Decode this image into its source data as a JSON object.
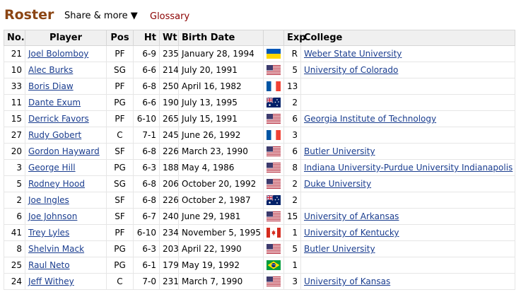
{
  "header": {
    "title": "Roster",
    "share_label": "Share & more ▼",
    "glossary_label": "Glossary"
  },
  "table": {
    "columns": [
      "No.",
      "Player",
      "Pos",
      "Ht",
      "Wt",
      "Birth Date",
      "",
      "Exp",
      "College"
    ],
    "rows": [
      {
        "no": "21",
        "player": "Joel Bolomboy",
        "pos": "PF",
        "ht": "6-9",
        "wt": "235",
        "birth": "January 28, 1994",
        "flag": "ua-flag-icon",
        "exp": "R",
        "college": "Weber State University"
      },
      {
        "no": "10",
        "player": "Alec Burks",
        "pos": "SG",
        "ht": "6-6",
        "wt": "214",
        "birth": "July 20, 1991",
        "flag": "us-flag-icon",
        "exp": "5",
        "college": "University of Colorado"
      },
      {
        "no": "33",
        "player": "Boris Diaw",
        "pos": "PF",
        "ht": "6-8",
        "wt": "250",
        "birth": "April 16, 1982",
        "flag": "fr-flag-icon",
        "exp": "13",
        "college": ""
      },
      {
        "no": "11",
        "player": "Dante Exum",
        "pos": "PG",
        "ht": "6-6",
        "wt": "190",
        "birth": "July 13, 1995",
        "flag": "au-flag-icon",
        "exp": "2",
        "college": ""
      },
      {
        "no": "15",
        "player": "Derrick Favors",
        "pos": "PF",
        "ht": "6-10",
        "wt": "265",
        "birth": "July 15, 1991",
        "flag": "us-flag-icon",
        "exp": "6",
        "college": "Georgia Institute of Technology"
      },
      {
        "no": "27",
        "player": "Rudy Gobert",
        "pos": "C",
        "ht": "7-1",
        "wt": "245",
        "birth": "June 26, 1992",
        "flag": "fr-flag-icon",
        "exp": "3",
        "college": ""
      },
      {
        "no": "20",
        "player": "Gordon Hayward",
        "pos": "SF",
        "ht": "6-8",
        "wt": "226",
        "birth": "March 23, 1990",
        "flag": "us-flag-icon",
        "exp": "6",
        "college": "Butler University"
      },
      {
        "no": "3",
        "player": "George Hill",
        "pos": "PG",
        "ht": "6-3",
        "wt": "188",
        "birth": "May 4, 1986",
        "flag": "us-flag-icon",
        "exp": "8",
        "college": "Indiana University-Purdue University Indianapolis"
      },
      {
        "no": "5",
        "player": "Rodney Hood",
        "pos": "SG",
        "ht": "6-8",
        "wt": "206",
        "birth": "October 20, 1992",
        "flag": "us-flag-icon",
        "exp": "2",
        "college": "Duke University"
      },
      {
        "no": "2",
        "player": "Joe Ingles",
        "pos": "SF",
        "ht": "6-8",
        "wt": "226",
        "birth": "October 2, 1987",
        "flag": "au-flag-icon",
        "exp": "2",
        "college": ""
      },
      {
        "no": "6",
        "player": "Joe Johnson",
        "pos": "SF",
        "ht": "6-7",
        "wt": "240",
        "birth": "June 29, 1981",
        "flag": "us-flag-icon",
        "exp": "15",
        "college": "University of Arkansas"
      },
      {
        "no": "41",
        "player": "Trey Lyles",
        "pos": "PF",
        "ht": "6-10",
        "wt": "234",
        "birth": "November 5, 1995",
        "flag": "ca-flag-icon",
        "exp": "1",
        "college": "University of Kentucky"
      },
      {
        "no": "8",
        "player": "Shelvin Mack",
        "pos": "PG",
        "ht": "6-3",
        "wt": "203",
        "birth": "April 22, 1990",
        "flag": "us-flag-icon",
        "exp": "5",
        "college": "Butler University"
      },
      {
        "no": "25",
        "player": "Raul Neto",
        "pos": "PG",
        "ht": "6-1",
        "wt": "179",
        "birth": "May 19, 1992",
        "flag": "br-flag-icon",
        "exp": "1",
        "college": ""
      },
      {
        "no": "24",
        "player": "Jeff Withey",
        "pos": "C",
        "ht": "7-0",
        "wt": "231",
        "birth": "March 7, 1990",
        "flag": "us-flag-icon",
        "exp": "3",
        "college": "University of Kansas"
      }
    ]
  },
  "colors": {
    "title": "#8b4513",
    "link": "#1a3d8f",
    "glossary": "#8b0000",
    "header_bg": "#f0f0f0"
  }
}
